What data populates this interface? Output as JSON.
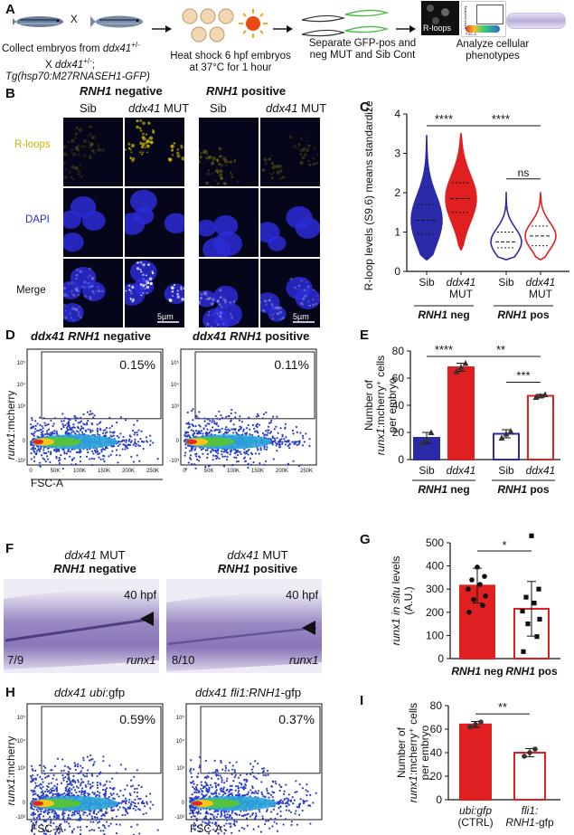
{
  "panelA": {
    "label": "A",
    "step1_line1": "Collect embryos from ",
    "step1_line1_it": "ddx41",
    "step1_line1_sup": "+/-",
    "step1_line2": "X ",
    "step1_line2_it": "ddx41",
    "step1_line2_sup": "+/-",
    "step1_line2_end": ";",
    "step1_line3": "Tg(hsp70:M27RNASEH1-GFP)",
    "cross_symbol": "X",
    "step2_line1": "Heat shock 6 hpf embryos",
    "step2_line2": "at 37°C for 1 hour",
    "step3_line1": "Separate GFP-pos and",
    "step3_line2": "neg MUT and Sib Cont",
    "step4": "Analyze cellular",
    "step4_line2": "phenotypes",
    "thumb_label": "R-loops",
    "thumb_axis_y": "runx1:mcherry",
    "thumb_axis_x": "FSC-A"
  },
  "panelB": {
    "label": "B",
    "group_neg_it": "RNH1",
    "group_neg": " negative",
    "group_pos_it": "RNH1",
    "group_pos": " positive",
    "col_sib": "Sib",
    "col_mut_it": "ddx41",
    "col_mut": " MUT",
    "row_rloops": "R-loops",
    "row_dapi": "DAPI",
    "row_merge": "Merge",
    "scale_bar": "5µm",
    "colors": {
      "rloops": "#c9b800",
      "dapi": "#2b2bd6",
      "merge": "#ffffff"
    }
  },
  "panelC": {
    "label": "C",
    "chart_data": {
      "type": "violin",
      "ylabel": "R-loop levels (S9.6) means standardized",
      "ylim": [
        0,
        4
      ],
      "yticks": [
        "0",
        "1",
        "2",
        "3",
        "4"
      ],
      "categories": [
        "Sib",
        "ddx41 MUT",
        "Sib",
        "ddx41 MUT"
      ],
      "groups": [
        "RNH1 neg",
        "RNH1 pos"
      ],
      "series": [
        {
          "name": "Sib RNH1 neg",
          "min": 0.3,
          "max": 3.45,
          "median": 1.3,
          "q1": 0.95,
          "q3": 1.7,
          "color": "#2a2aa8",
          "filled": true
        },
        {
          "name": "ddx41 MUT RNH1 neg",
          "min": 0.55,
          "max": 3.5,
          "median": 1.85,
          "q1": 1.5,
          "q3": 2.25,
          "color": "#e02020",
          "filled": true
        },
        {
          "name": "Sib RNH1 pos",
          "min": 0.3,
          "max": 2.0,
          "median": 0.75,
          "q1": 0.6,
          "q3": 1.0,
          "color": "#2a2aa8",
          "filled": false
        },
        {
          "name": "ddx41 MUT RNH1 pos",
          "min": 0.3,
          "max": 2.0,
          "median": 0.9,
          "q1": 0.65,
          "q3": 1.15,
          "color": "#e02020",
          "filled": false
        }
      ],
      "significance": [
        {
          "label": "****",
          "from": 0,
          "to": 1
        },
        {
          "label": "****",
          "from": 1,
          "to": 3
        },
        {
          "label": "ns",
          "from": 2,
          "to": 3
        }
      ],
      "cat_labels": [
        "Sib",
        "ddx41",
        "Sib",
        "ddx41"
      ],
      "cat_labels2": [
        "",
        "MUT",
        "",
        "MUT"
      ],
      "group_neg_it": "RNH1",
      "group_neg": " neg",
      "group_pos_it": "RNH1",
      "group_pos": " pos"
    }
  },
  "panelD": {
    "label": "D",
    "title_left_it": "ddx41 RNH1",
    "title_left": " negative",
    "title_right_it": "ddx41 RNH1",
    "title_right": " positive",
    "pct_left": "0.15%",
    "pct_right": "0.11%",
    "ylabel_it": "runx1",
    "ylabel": ":mcherry",
    "xlabel": "FSC-A",
    "xticks": [
      "0",
      "50K",
      "100K",
      "150K",
      "200K",
      "250K"
    ],
    "yticks": [
      "10⁵",
      "10⁴",
      "10³",
      "0",
      "-10³"
    ]
  },
  "panelE": {
    "label": "E",
    "chart_data": {
      "type": "bar",
      "ylabel_line1": "Number of",
      "ylabel_line2_it": "runx1",
      "ylabel_line2": ":mcherry⁺ cells",
      "ylabel_line3": "per embryo",
      "ylim": [
        0,
        80
      ],
      "yticks": [
        "0",
        "20",
        "40",
        "60",
        "80"
      ],
      "categories": [
        "Sib",
        "ddx41",
        "Sib",
        "ddx41"
      ],
      "values": [
        16,
        68,
        19,
        47
      ],
      "errors": [
        4,
        3,
        3,
        1
      ],
      "points": [
        [
          12,
          15,
          20
        ],
        [
          65,
          68,
          71
        ],
        [
          16,
          19,
          21
        ],
        [
          46,
          47,
          48
        ]
      ],
      "colors": [
        "#2a2aa8",
        "#e02020",
        "#2a2aa8",
        "#e02020"
      ],
      "filled": [
        true,
        true,
        false,
        false
      ],
      "significance": [
        {
          "label": "****",
          "from": 0,
          "to": 1
        },
        {
          "label": "**",
          "from": 1,
          "to": 3
        },
        {
          "label": "***",
          "from": 2,
          "to": 3
        }
      ],
      "group_neg_it": "RNH1",
      "group_neg": " neg",
      "group_pos_it": "RNH1",
      "group_pos": " pos"
    }
  },
  "panelF": {
    "label": "F",
    "left_title1_it": "ddx41",
    "left_title1": " MUT",
    "left_title2_it": "RNH1",
    "left_title2": " negative",
    "right_title1_it": "ddx41",
    "right_title1": " MUT",
    "right_title2_it": "RNH1",
    "right_title2": " positive",
    "stage": "40 hpf",
    "count_left": "7/9",
    "count_right": "8/10",
    "gene": "runx1"
  },
  "panelG": {
    "label": "G",
    "chart_data": {
      "type": "bar",
      "ylabel_it": "runx1 in situ",
      "ylabel": " levels",
      "ylabel2": "(A.U.)",
      "ylim": [
        0,
        500
      ],
      "yticks": [
        "0",
        "100",
        "200",
        "300",
        "400",
        "500"
      ],
      "categories": [
        "RNH1 neg",
        "RNH1 pos"
      ],
      "cat_it": [
        "RNH1",
        "RNH1"
      ],
      "cat_rest": [
        " neg",
        " pos"
      ],
      "values": [
        315,
        215
      ],
      "errors": [
        75,
        118
      ],
      "points_a": [
        200,
        230,
        255,
        270,
        300,
        320,
        340,
        355,
        395
      ],
      "points_b": [
        30,
        95,
        150,
        170,
        205,
        240,
        265,
        300,
        530
      ],
      "colors": [
        "#e02020",
        "#e02020"
      ],
      "filled": [
        true,
        false
      ],
      "significance": [
        {
          "label": "*",
          "from": 0,
          "to": 1
        }
      ]
    }
  },
  "panelH": {
    "label": "H",
    "title_left_it": "ddx41 ubi",
    "title_left": ":gfp",
    "title_right_it": "ddx41 fli1:RNH1",
    "title_right": "-gfp",
    "pct_left": "0.59%",
    "pct_right": "0.37%",
    "ylabel_it": "runx1",
    "ylabel": ":mcherry",
    "xlabel": "FSC-A",
    "yticks": [
      "10⁵",
      "10⁴",
      "10³",
      "0",
      "-10³"
    ]
  },
  "panelI": {
    "label": "I",
    "chart_data": {
      "type": "bar",
      "ylabel_line1": "Number of",
      "ylabel_line2_it": "runx1",
      "ylabel_line2": ":mcherry⁺ cells",
      "ylabel_line3": "per embryo",
      "ylim": [
        0,
        80
      ],
      "yticks": [
        "0",
        "20",
        "40",
        "60",
        "80"
      ],
      "categories": [
        "ubi:gfp (CTRL)",
        "fli1: RNH1-gfp"
      ],
      "cat1_line1_it": "ubi:gfp",
      "cat1_line2": "(CTRL)",
      "cat2_line1_it": "fli1:",
      "cat2_line2_it": "RNH1",
      "cat2_line2": "-gfp",
      "values": [
        64,
        40
      ],
      "errors": [
        2.5,
        3.5
      ],
      "points": [
        [
          62,
          64,
          66
        ],
        [
          37,
          40,
          43
        ]
      ],
      "colors": [
        "#e02020",
        "#e02020"
      ],
      "filled": [
        true,
        false
      ],
      "significance": [
        {
          "label": "**",
          "from": 0,
          "to": 1
        }
      ]
    }
  }
}
